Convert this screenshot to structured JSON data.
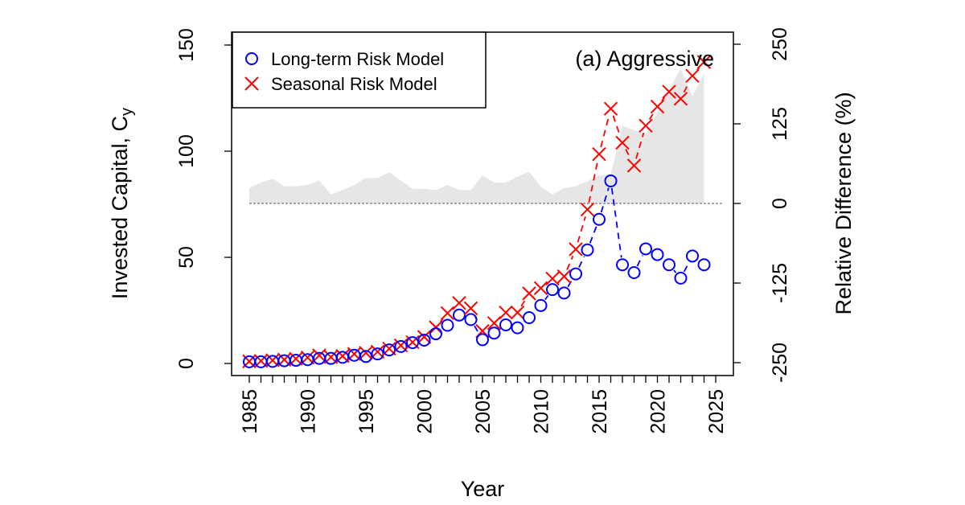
{
  "chart_data": {
    "type": "scatter",
    "title": "(a) Aggressive",
    "xlabel": "Year",
    "ylabel": "Invested Capital, C",
    "ylabel_subscript": "y",
    "y2label": "Relative Difference (%)",
    "xlim": [
      1985,
      2025
    ],
    "ylim": [
      0,
      150
    ],
    "y2lim": [
      -250,
      250
    ],
    "x_ticks": [
      1985,
      1990,
      1995,
      2000,
      2005,
      2010,
      2015,
      2020,
      2025
    ],
    "y_ticks": [
      0,
      50,
      100,
      150
    ],
    "y2_ticks": [
      -250,
      -125,
      0,
      125,
      250
    ],
    "legend_position": "top-left",
    "x": [
      1985,
      1986,
      1987,
      1988,
      1989,
      1990,
      1991,
      1992,
      1993,
      1994,
      1995,
      1996,
      1997,
      1998,
      1999,
      2000,
      2001,
      2002,
      2003,
      2004,
      2005,
      2006,
      2007,
      2008,
      2009,
      2010,
      2011,
      2012,
      2013,
      2014,
      2015,
      2016,
      2017,
      2018,
      2019,
      2020,
      2021,
      2022,
      2023,
      2024
    ],
    "series": [
      {
        "name": "Long-term Risk Model",
        "marker": "circle",
        "color": "#0000ff",
        "values": [
          0.8,
          0.8,
          1.0,
          1.3,
          1.5,
          1.8,
          2.4,
          2.4,
          2.9,
          3.9,
          3.3,
          4.5,
          6.4,
          8.0,
          9.8,
          11.0,
          14.0,
          18.0,
          22.8,
          20.7,
          11.2,
          14.3,
          18.2,
          16.8,
          21.6,
          27.3,
          34.8,
          33.2,
          42.2,
          53.5,
          67.9,
          86.0,
          46.5,
          42.8,
          54.0,
          51.3,
          46.5,
          40.2,
          50.6,
          46.5
        ]
      },
      {
        "name": "Seasonal Risk Model",
        "marker": "cross",
        "color": "#ff0000",
        "values": [
          1.0,
          1.2,
          1.5,
          1.8,
          2.2,
          2.8,
          3.8,
          3.0,
          3.5,
          4.5,
          5.0,
          5.5,
          7.0,
          8.5,
          10.0,
          12.5,
          17.0,
          23.7,
          28.5,
          26.0,
          15.3,
          19.0,
          24.0,
          24.0,
          33.0,
          35.5,
          40.0,
          41.0,
          53.8,
          72.5,
          98.6,
          120.0,
          104.0,
          93.2,
          112.0,
          121.0,
          128.0,
          124.7,
          135.5,
          142.0
        ]
      },
      {
        "type": "area",
        "axis": "right",
        "color": "#e6e6e6",
        "values": [
          24,
          33,
          39,
          27,
          27,
          29,
          36,
          14,
          21,
          29,
          40,
          40,
          49,
          36,
          23,
          23,
          21,
          29,
          21,
          21,
          44,
          33,
          33,
          42,
          50,
          26,
          14,
          24,
          27,
          35,
          44,
          46,
          122,
          115,
          109,
          143,
          178,
          212,
          168,
          204
        ]
      }
    ]
  }
}
